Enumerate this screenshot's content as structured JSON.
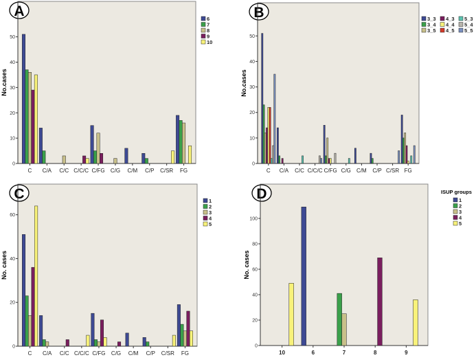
{
  "chart_data": [
    {
      "type": "bar",
      "panel_label": "A",
      "ylabel": "No.cases",
      "xlabel": "",
      "ylim": [
        0,
        64
      ],
      "yticks": [
        0,
        10,
        20,
        30,
        40,
        50
      ],
      "grid": false,
      "legend_title": "",
      "legend_placement": "right",
      "categories": [
        "C",
        "C/A",
        "C/C",
        "C/C/C",
        "C/FG",
        "C/G",
        "C/M",
        "C/P",
        "C/SR",
        "FG"
      ],
      "series": [
        {
          "name": "6",
          "color": "#3e4a94",
          "values": [
            51,
            14,
            0,
            0,
            15,
            0,
            6,
            4,
            0,
            19
          ]
        },
        {
          "name": "7",
          "color": "#3aa04a",
          "values": [
            37,
            5,
            0,
            0,
            5,
            0,
            0,
            2,
            0,
            17
          ]
        },
        {
          "name": "8",
          "color": "#c8c08a",
          "values": [
            36,
            0,
            3,
            0,
            12,
            2,
            0,
            0,
            0,
            16
          ]
        },
        {
          "name": "9",
          "color": "#7a1e5e",
          "values": [
            29,
            0,
            0,
            3,
            4,
            0,
            0,
            0,
            0,
            0
          ]
        },
        {
          "name": "10",
          "color": "#f8f27a",
          "values": [
            35,
            0,
            0,
            2,
            0,
            0,
            0,
            0,
            5,
            7
          ]
        }
      ]
    },
    {
      "type": "bar",
      "panel_label": "B",
      "ylabel": "No.cases",
      "xlabel": "",
      "ylim": [
        0,
        63
      ],
      "yticks": [
        0,
        10,
        20,
        30,
        40,
        50
      ],
      "grid": false,
      "legend_title": "",
      "legend_placement": "right",
      "categories": [
        "C",
        "C/A",
        "C/C",
        "C/C/C",
        "C/FG",
        "C/G",
        "C/M",
        "C/P",
        "C/SR",
        "FG"
      ],
      "series": [
        {
          "name": "3_3",
          "color": "#3e4a94",
          "values": [
            51,
            14,
            0,
            0,
            15,
            0,
            6,
            4,
            0,
            19
          ]
        },
        {
          "name": "3_4",
          "color": "#3aa04a",
          "values": [
            23,
            3,
            0,
            0,
            3,
            0,
            0,
            2,
            0,
            10
          ]
        },
        {
          "name": "3_5",
          "color": "#c8c08a",
          "values": [
            12,
            0,
            0,
            0,
            10,
            0,
            0,
            0,
            0,
            12
          ]
        },
        {
          "name": "4_3",
          "color": "#7a1e5e",
          "values": [
            14,
            2,
            0,
            0,
            2,
            0,
            0,
            0,
            0,
            7
          ]
        },
        {
          "name": "4_4",
          "color": "#f8f27a",
          "values": [
            22,
            0,
            0,
            0,
            2,
            0,
            0,
            0,
            0,
            1
          ]
        },
        {
          "name": "4_5",
          "color": "#d43a2a",
          "values": [
            22,
            0,
            0,
            0,
            0,
            0,
            0,
            0,
            0,
            0
          ]
        },
        {
          "name": "5_3",
          "color": "#5cc2b0",
          "values": [
            2,
            0,
            3,
            0,
            0,
            2,
            0,
            0,
            0,
            3
          ]
        },
        {
          "name": "5_4",
          "color": "#b8b4ac",
          "values": [
            7,
            0,
            0,
            3,
            4,
            0,
            0,
            0,
            0,
            0
          ]
        },
        {
          "name": "5_5",
          "color": "#7a90c0",
          "values": [
            35,
            0,
            0,
            2,
            0,
            0,
            0,
            0,
            5,
            7
          ]
        }
      ]
    },
    {
      "type": "bar",
      "panel_label": "C",
      "ylabel": "No. cases",
      "xlabel": "",
      "ylim": [
        0,
        74
      ],
      "yticks": [
        0,
        20,
        40,
        60
      ],
      "grid": false,
      "legend_title": "",
      "legend_placement": "right",
      "categories": [
        "C",
        "C/A",
        "C/C",
        "C/C/C",
        "C/FG",
        "C/G",
        "C/M",
        "C/P",
        "C/SR",
        "FG"
      ],
      "series": [
        {
          "name": "1",
          "color": "#3e4a94",
          "values": [
            51,
            14,
            0,
            0,
            15,
            0,
            6,
            4,
            0,
            19
          ]
        },
        {
          "name": "2",
          "color": "#3aa04a",
          "values": [
            23,
            3,
            0,
            0,
            3,
            0,
            0,
            2,
            0,
            10
          ]
        },
        {
          "name": "3",
          "color": "#c8c08a",
          "values": [
            14,
            2,
            0,
            0,
            2,
            0,
            0,
            0,
            0,
            7
          ]
        },
        {
          "name": "4",
          "color": "#7a1e5e",
          "values": [
            36,
            0,
            3,
            0,
            12,
            2,
            0,
            0,
            0,
            16
          ]
        },
        {
          "name": "5",
          "color": "#f8f27a",
          "values": [
            64,
            0,
            0,
            5,
            4,
            0,
            0,
            0,
            5,
            7
          ]
        }
      ]
    },
    {
      "type": "bar",
      "panel_label": "D",
      "ylabel": "No. cases",
      "xlabel": "",
      "ylim": [
        0,
        127
      ],
      "yticks": [
        0,
        20,
        40,
        60,
        80,
        100
      ],
      "grid": false,
      "legend_title": "ISUP groups",
      "legend_placement": "right",
      "categories": [
        "10",
        "6",
        "7",
        "8",
        "9"
      ],
      "series": [
        {
          "name": "1",
          "color": "#3e4a94",
          "values": [
            0,
            109,
            0,
            0,
            0
          ]
        },
        {
          "name": "2",
          "color": "#3aa04a",
          "values": [
            0,
            0,
            41,
            0,
            0
          ]
        },
        {
          "name": "3",
          "color": "#c8c08a",
          "values": [
            0,
            0,
            25,
            0,
            0
          ]
        },
        {
          "name": "4",
          "color": "#7a1e5e",
          "values": [
            0,
            0,
            0,
            69,
            0
          ]
        },
        {
          "name": "5",
          "color": "#f8f27a",
          "values": [
            49,
            0,
            0,
            0,
            36
          ]
        }
      ]
    }
  ],
  "colors": {
    "plot_background": "#ece9e1",
    "axis": "#333333"
  }
}
